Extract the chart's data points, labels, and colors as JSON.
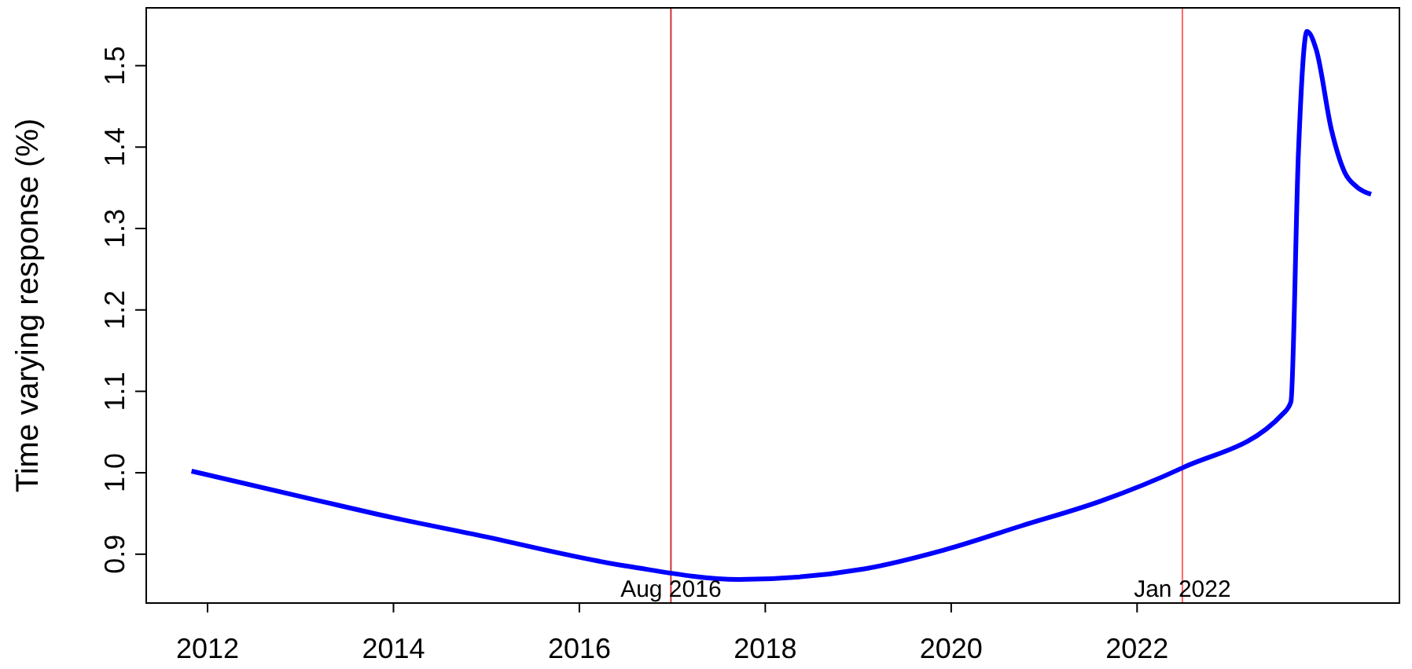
{
  "chart_data": {
    "type": "line",
    "ylabel": "Time varying response (%)",
    "x": [
      2011.5,
      2012.8,
      2013.63,
      2014.47,
      2016.13,
      2017.3,
      2018.63,
      2019.47,
      2020.3,
      2021.13,
      2022.0,
      2023.07,
      2023.15,
      2023.23,
      2023.32,
      2023.42,
      2023.58,
      2023.72,
      2023.85,
      2024.0
    ],
    "series": [
      {
        "color": "#0000ff",
        "values": [
          1.002,
          0.967,
          0.945,
          0.925,
          0.885,
          0.869,
          0.882,
          0.905,
          0.935,
          0.965,
          1.006,
          1.073,
          1.087,
          1.394,
          1.542,
          1.519,
          1.421,
          1.369,
          1.351,
          1.342
        ]
      }
    ],
    "xlim": [
      2011.02,
      2024.3
    ],
    "ylim": [
      0.84,
      1.571
    ],
    "xticks": [
      {
        "value": 2011.67,
        "label": "2012"
      },
      {
        "value": 2013.64,
        "label": "2014"
      },
      {
        "value": 2015.61,
        "label": "2016"
      },
      {
        "value": 2017.58,
        "label": "2018"
      },
      {
        "value": 2019.55,
        "label": "2020"
      },
      {
        "value": 2021.52,
        "label": "2022"
      }
    ],
    "yticks": [
      {
        "value": 0.9,
        "label": "0.9"
      },
      {
        "value": 1.0,
        "label": "1.0"
      },
      {
        "value": 1.1,
        "label": "1.1"
      },
      {
        "value": 1.2,
        "label": "1.2"
      },
      {
        "value": 1.3,
        "label": "1.3"
      },
      {
        "value": 1.4,
        "label": "1.4"
      },
      {
        "value": 1.5,
        "label": "1.5"
      }
    ],
    "ref_lines": [
      {
        "axis": "x",
        "value": 2016.58,
        "label": "Aug 2016",
        "color": "#cc3333"
      },
      {
        "axis": "x",
        "value": 2022.0,
        "label": "Jan 2022",
        "color": "#ff6666"
      }
    ],
    "grid": false,
    "marker": "none",
    "line_style": "solid"
  }
}
